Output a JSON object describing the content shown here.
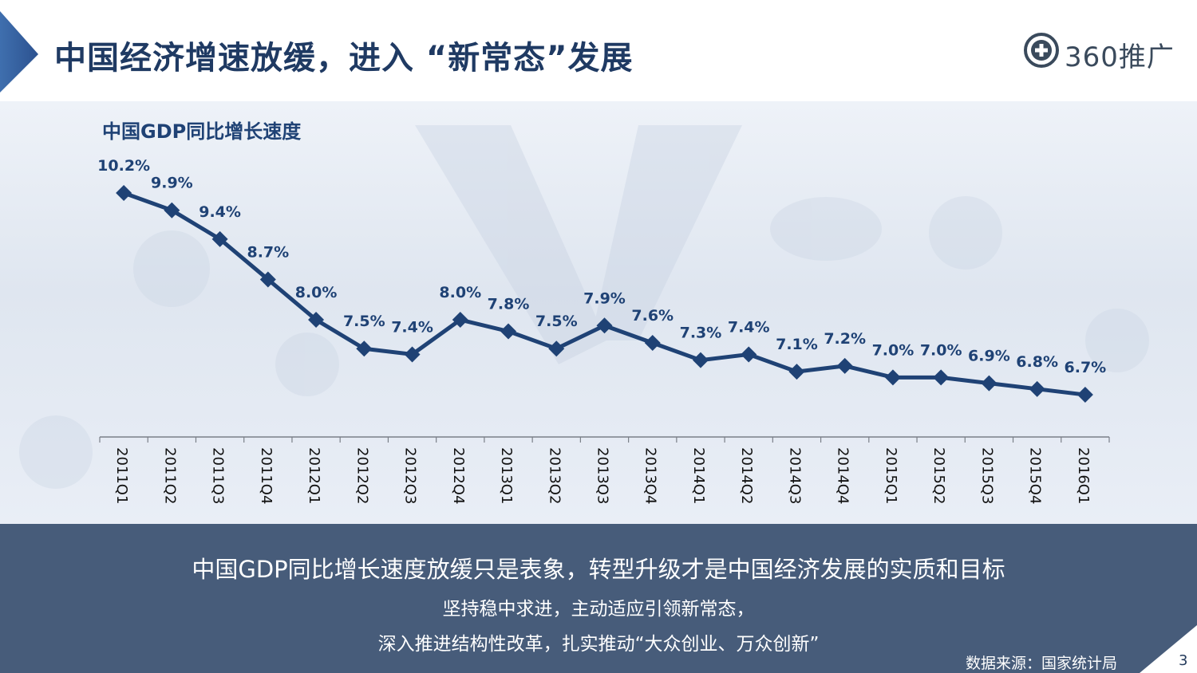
{
  "header": {
    "title": "中国经济增速放缓，进入 “新常态”发展",
    "logo_text": "360推广"
  },
  "chart_data": {
    "type": "line",
    "title": "中国GDP同比增长速度",
    "categories": [
      "2011Q1",
      "2011Q2",
      "2011Q3",
      "2011Q4",
      "2012Q1",
      "2012Q2",
      "2012Q3",
      "2012Q4",
      "2013Q1",
      "2013Q2",
      "2013Q3",
      "2013Q4",
      "2014Q1",
      "2014Q2",
      "2014Q3",
      "2014Q4",
      "2015Q1",
      "2015Q2",
      "2015Q3",
      "2015Q4",
      "2016Q1"
    ],
    "values": [
      10.2,
      9.9,
      9.4,
      8.7,
      8.0,
      7.5,
      7.4,
      8.0,
      7.8,
      7.5,
      7.9,
      7.6,
      7.3,
      7.4,
      7.1,
      7.2,
      7.0,
      7.0,
      6.9,
      6.8,
      6.7
    ],
    "labels": [
      "10.2%",
      "9.9%",
      "9.4%",
      "8.7%",
      "8.0%",
      "7.5%",
      "7.4%",
      "8.0%",
      "7.8%",
      "7.5%",
      "7.9%",
      "7.6%",
      "7.3%",
      "7.4%",
      "7.1%",
      "7.2%",
      "7.0%",
      "7.0%",
      "6.9%",
      "6.8%",
      "6.7%"
    ],
    "grid": false,
    "legend": "none",
    "color": "#1f4275"
  },
  "footer": {
    "main": "中国GDP同比增长速度放缓只是表象，转型升级才是中国经济发展的实质和目标",
    "sub1": "坚持稳中求进，主动适应引领新常态，",
    "sub2": "深入推进结构性改革，扎实推动“大众创业、万众创新”",
    "source": "数据来源：国家统计局"
  },
  "page_number": "3"
}
